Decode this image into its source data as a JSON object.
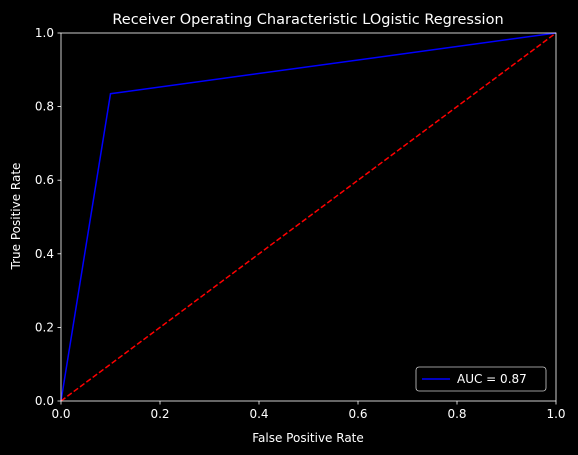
{
  "chart_data": {
    "type": "line",
    "title": "Receiver Operating Characteristic LOgistic Regression",
    "xlabel": "False Positive Rate",
    "ylabel": "True Positive Rate",
    "xlim": [
      0,
      1
    ],
    "ylim": [
      0,
      1
    ],
    "xticks": [
      "0.0",
      "0.2",
      "0.4",
      "0.6",
      "0.8",
      "1.0"
    ],
    "yticks": [
      "0.0",
      "0.2",
      "0.4",
      "0.6",
      "0.8",
      "1.0"
    ],
    "grid": false,
    "legend_position": "bottom-right",
    "background": "#000000",
    "series": [
      {
        "name": "AUC = 0.87",
        "color": "#0000ff",
        "style": "solid",
        "x": [
          0.0,
          0.1,
          1.0
        ],
        "y": [
          0.0,
          0.835,
          1.0
        ]
      },
      {
        "color": "#ff0000",
        "style": "dashed",
        "x": [
          0.0,
          1.0
        ],
        "y": [
          0.0,
          1.0
        ]
      }
    ]
  }
}
